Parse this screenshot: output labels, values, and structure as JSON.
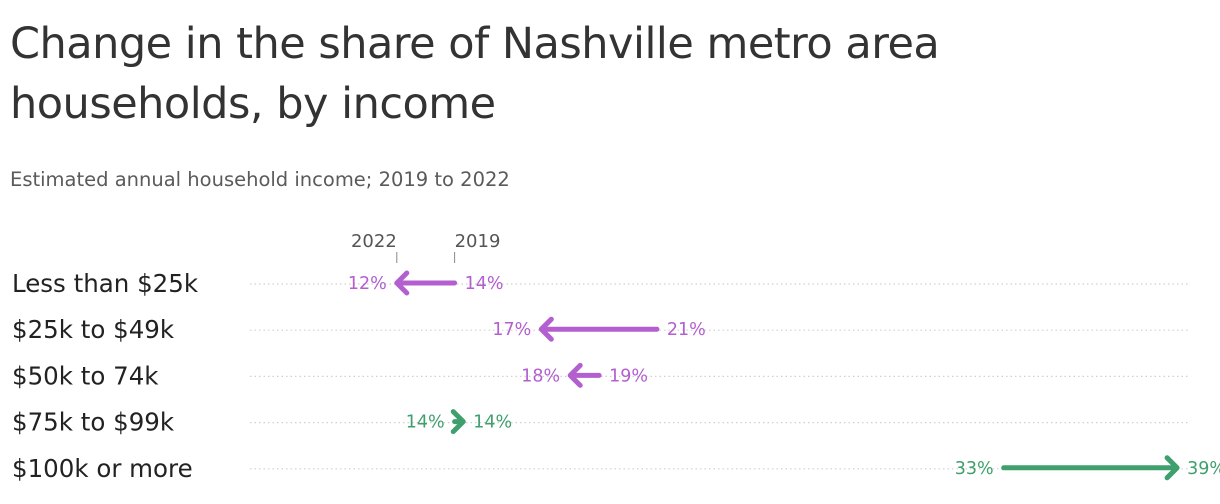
{
  "title": "Change in the share of Nashville metro area households, by income",
  "subtitle": "Estimated annual household income; 2019 to 2022",
  "colors": {
    "decrease": "#b35fd0",
    "increase": "#3f9f6d",
    "grid": "#d0d0d0",
    "year_tick": "#888888"
  },
  "chart_data": {
    "type": "arrow",
    "start_year_label": "2019",
    "end_year_label": "2022",
    "xlim": [
      10,
      40
    ],
    "rows": [
      {
        "category": "Less than $25k",
        "y2019": 14,
        "y2022": 12,
        "label2019": "14%",
        "label2022": "12%"
      },
      {
        "category": "$25k to $49k",
        "y2019": 21,
        "y2022": 17,
        "label2019": "21%",
        "label2022": "17%"
      },
      {
        "category": "$50k to 74k",
        "y2019": 19,
        "y2022": 18,
        "label2019": "19%",
        "label2022": "18%"
      },
      {
        "category": "$75k to $99k",
        "y2019": 14,
        "y2022": 14.3,
        "label2019": "14%",
        "label2022": "14%"
      },
      {
        "category": "$100k or more",
        "y2019": 33,
        "y2022": 39,
        "label2019": "33%",
        "label2022": "39%"
      }
    ]
  }
}
